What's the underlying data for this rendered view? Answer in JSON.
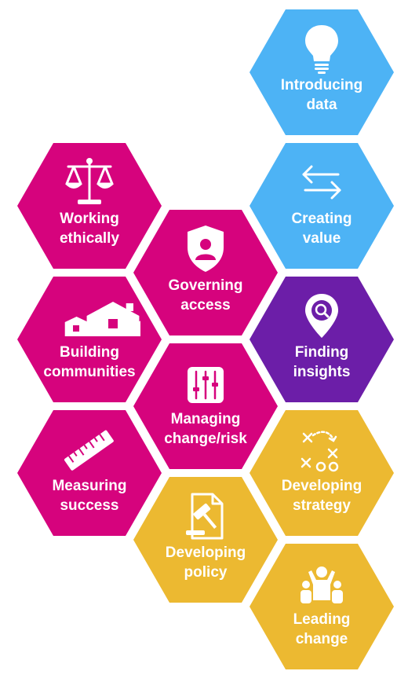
{
  "colors": {
    "blue": "#4db3f5",
    "magenta": "#d6037d",
    "purple": "#6c1ea8",
    "gold": "#ecb931"
  },
  "hexes": [
    {
      "id": "introducing-data",
      "lines": [
        "Introducing",
        "data"
      ],
      "color": "blue",
      "icon": "lightbulb-icon"
    },
    {
      "id": "creating-value",
      "lines": [
        "Creating",
        "value"
      ],
      "color": "blue",
      "icon": "exchange-arrows-icon"
    },
    {
      "id": "working-ethically",
      "lines": [
        "Working",
        "ethically"
      ],
      "color": "magenta",
      "icon": "scales-icon"
    },
    {
      "id": "governing-access",
      "lines": [
        "Governing",
        "access"
      ],
      "color": "magenta",
      "icon": "shield-user-icon"
    },
    {
      "id": "building-communities",
      "lines": [
        "Building",
        "communities"
      ],
      "color": "magenta",
      "icon": "houses-icon"
    },
    {
      "id": "finding-insights",
      "lines": [
        "Finding",
        "insights"
      ],
      "color": "purple",
      "icon": "map-pin-search-icon"
    },
    {
      "id": "managing-change-risk",
      "lines": [
        "Managing",
        "change/risk"
      ],
      "color": "magenta",
      "icon": "sliders-icon"
    },
    {
      "id": "measuring-success",
      "lines": [
        "Measuring",
        "success"
      ],
      "color": "magenta",
      "icon": "ruler-icon"
    },
    {
      "id": "developing-strategy",
      "lines": [
        "Developing",
        "strategy"
      ],
      "color": "gold",
      "icon": "tactics-xo-icon"
    },
    {
      "id": "developing-policy",
      "lines": [
        "Developing",
        "policy"
      ],
      "color": "gold",
      "icon": "gavel-document-icon"
    },
    {
      "id": "leading-change",
      "lines": [
        "Leading",
        "change"
      ],
      "color": "gold",
      "icon": "team-leader-icon"
    }
  ]
}
